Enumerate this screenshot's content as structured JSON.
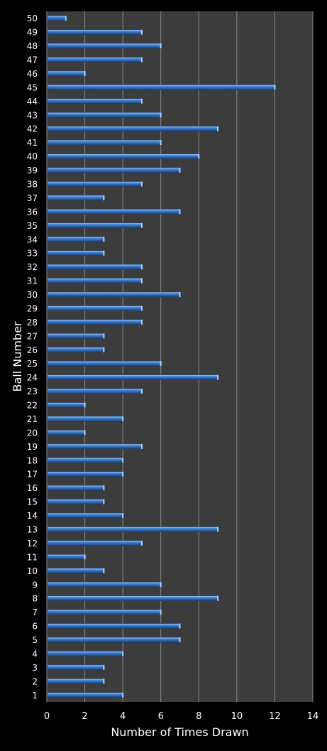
{
  "chart_data": {
    "type": "bar",
    "orientation": "horizontal",
    "title": "",
    "xlabel": "Number of Times Drawn",
    "ylabel": "Ball Number",
    "xlim": [
      0,
      14
    ],
    "xticks": [
      0,
      2,
      4,
      6,
      8,
      10,
      12,
      14
    ],
    "grid": true,
    "legend": "none",
    "categories": [
      "1",
      "2",
      "3",
      "4",
      "5",
      "6",
      "7",
      "8",
      "9",
      "10",
      "11",
      "12",
      "13",
      "14",
      "15",
      "16",
      "17",
      "18",
      "19",
      "20",
      "21",
      "22",
      "23",
      "24",
      "25",
      "26",
      "27",
      "28",
      "29",
      "30",
      "31",
      "32",
      "33",
      "34",
      "35",
      "36",
      "37",
      "38",
      "39",
      "40",
      "41",
      "42",
      "43",
      "44",
      "45",
      "46",
      "47",
      "48",
      "49",
      "50"
    ],
    "values": [
      4,
      3,
      3,
      4,
      7,
      7,
      6,
      9,
      6,
      3,
      2,
      5,
      9,
      4,
      3,
      3,
      4,
      4,
      5,
      2,
      4,
      2,
      5,
      9,
      6,
      3,
      3,
      5,
      5,
      7,
      5,
      5,
      3,
      3,
      5,
      7,
      3,
      5,
      7,
      8,
      6,
      9,
      6,
      5,
      12,
      2,
      5,
      6,
      5,
      1
    ],
    "colors": {
      "background": "#000000",
      "plot_area": "#3c3c3c",
      "gridline": "#8a8a8a",
      "bar": "#3f82d4",
      "bar_highlight": "#a9d0ff",
      "bar_shadow": "#1a3f73",
      "text": "#ffffff"
    }
  }
}
